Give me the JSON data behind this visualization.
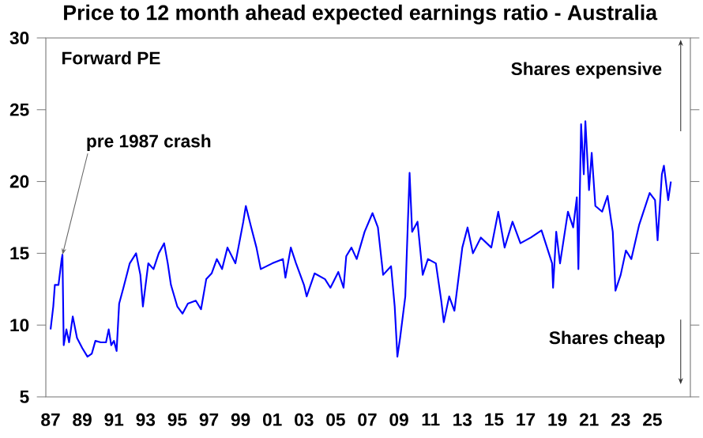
{
  "chart_data": {
    "type": "line",
    "title": "Price to 12 month ahead expected earnings ratio - Australia",
    "x": [
      1987.0,
      1987.17,
      1987.27,
      1987.5,
      1987.6,
      1987.7,
      1987.75,
      1987.83,
      1988.0,
      1988.17,
      1988.4,
      1988.67,
      1989.0,
      1989.33,
      1989.6,
      1989.83,
      1990.17,
      1990.5,
      1990.67,
      1990.83,
      1991.0,
      1991.17,
      1991.33,
      1991.6,
      1992.0,
      1992.4,
      1992.67,
      1992.83,
      1993.17,
      1993.5,
      1993.83,
      1994.17,
      1994.4,
      1994.6,
      1995.0,
      1995.33,
      1995.67,
      1996.17,
      1996.5,
      1996.83,
      1997.17,
      1997.5,
      1997.83,
      1998.17,
      1998.67,
      1999.17,
      1999.33,
      1999.67,
      2000.0,
      2000.27,
      2001.0,
      2001.67,
      2001.83,
      2002.17,
      2002.5,
      2003.0,
      2003.17,
      2003.67,
      2004.33,
      2004.67,
      2005.17,
      2005.5,
      2005.67,
      2006.0,
      2006.33,
      2006.83,
      2007.33,
      2007.67,
      2008.0,
      2008.5,
      2008.73,
      2008.9,
      2009.07,
      2009.4,
      2009.67,
      2009.83,
      2010.17,
      2010.5,
      2010.83,
      2011.33,
      2011.67,
      2011.83,
      2012.17,
      2012.5,
      2013.0,
      2013.33,
      2013.67,
      2014.17,
      2014.83,
      2015.27,
      2015.67,
      2016.17,
      2016.67,
      2017.33,
      2018.0,
      2018.67,
      2018.73,
      2018.93,
      2019.17,
      2019.67,
      2020.0,
      2020.23,
      2020.33,
      2020.5,
      2020.67,
      2020.77,
      2021.0,
      2021.17,
      2021.4,
      2021.83,
      2022.17,
      2022.5,
      2022.67,
      2023.0,
      2023.33,
      2023.67,
      2024.17,
      2024.83,
      2025.17,
      2025.33,
      2025.6,
      2025.73,
      2026.0,
      2026.17
    ],
    "series": [
      {
        "color": "#0000ff",
        "values": [
          9.7,
          11.3,
          12.8,
          12.8,
          13.7,
          14.6,
          14.9,
          8.6,
          9.7,
          8.8,
          10.6,
          9.1,
          8.4,
          7.8,
          8.0,
          8.9,
          8.8,
          8.8,
          9.7,
          8.6,
          8.9,
          8.2,
          11.5,
          12.6,
          14.3,
          15.0,
          13.5,
          11.3,
          14.3,
          13.9,
          15.0,
          15.7,
          14.3,
          12.8,
          11.3,
          10.8,
          11.5,
          11.7,
          11.1,
          13.2,
          13.6,
          14.6,
          13.9,
          15.4,
          14.3,
          17.2,
          18.3,
          16.8,
          15.4,
          13.9,
          14.3,
          14.6,
          13.3,
          15.4,
          14.3,
          12.8,
          12.0,
          13.6,
          13.2,
          12.6,
          13.7,
          12.6,
          14.8,
          15.4,
          14.6,
          16.5,
          17.8,
          16.8,
          13.5,
          14.1,
          11.3,
          7.8,
          9.1,
          12.0,
          20.6,
          16.5,
          17.2,
          13.5,
          14.6,
          14.3,
          11.7,
          10.2,
          12.0,
          11.0,
          15.4,
          16.8,
          15.0,
          16.1,
          15.4,
          17.9,
          15.4,
          17.2,
          15.7,
          16.1,
          16.6,
          14.3,
          12.6,
          16.5,
          14.3,
          17.9,
          16.8,
          18.9,
          13.9,
          24.0,
          20.5,
          24.2,
          19.4,
          22.0,
          18.3,
          17.9,
          19.0,
          16.5,
          12.4,
          13.5,
          15.2,
          14.6,
          17.0,
          19.2,
          18.7,
          15.9,
          20.5,
          21.1,
          18.7,
          20.0
        ]
      }
    ],
    "xlim": [
      1986.7,
      2027.4
    ],
    "ylim": [
      5,
      30
    ],
    "xticks": [
      {
        "value": 1987,
        "label": "87"
      },
      {
        "value": 1989,
        "label": "89"
      },
      {
        "value": 1991,
        "label": "91"
      },
      {
        "value": 1993,
        "label": "93"
      },
      {
        "value": 1995,
        "label": "95"
      },
      {
        "value": 1997,
        "label": "97"
      },
      {
        "value": 1999,
        "label": "99"
      },
      {
        "value": 2001,
        "label": "01"
      },
      {
        "value": 2003,
        "label": "03"
      },
      {
        "value": 2005,
        "label": "05"
      },
      {
        "value": 2007,
        "label": "07"
      },
      {
        "value": 2009,
        "label": "09"
      },
      {
        "value": 2011,
        "label": "11"
      },
      {
        "value": 2013,
        "label": "13"
      },
      {
        "value": 2015,
        "label": "15"
      },
      {
        "value": 2017,
        "label": "17"
      },
      {
        "value": 2019,
        "label": "19"
      },
      {
        "value": 2021,
        "label": "21"
      },
      {
        "value": 2023,
        "label": "23"
      },
      {
        "value": 2025,
        "label": "25"
      }
    ],
    "yticks": [
      5,
      10,
      15,
      20,
      25,
      30
    ],
    "annotations": [
      "Forward PE",
      {
        "text": "pre 1987 crash",
        "x": 1987.75,
        "y": 14.9
      },
      "Shares expensive",
      "Shares cheap"
    ],
    "marker": "none",
    "line_style": "solid"
  }
}
